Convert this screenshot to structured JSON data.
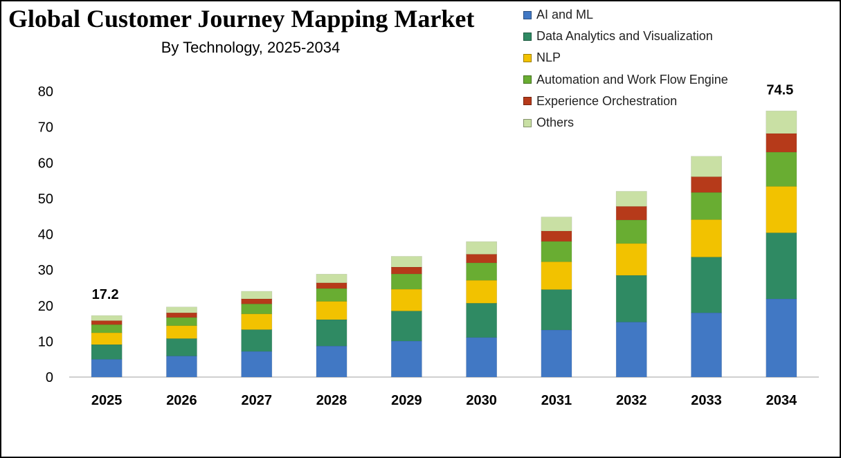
{
  "chart_data": {
    "type": "bar",
    "stacked": true,
    "title": "Global Customer Journey Mapping Market",
    "subtitle": "By Technology, 2025-2034",
    "xlabel": "",
    "ylabel": "",
    "categories": [
      "2025",
      "2026",
      "2027",
      "2028",
      "2029",
      "2030",
      "2031",
      "2032",
      "2033",
      "2034"
    ],
    "ylim": [
      0,
      80
    ],
    "yticks": [
      0,
      10,
      20,
      30,
      40,
      50,
      60,
      70,
      80
    ],
    "grid": false,
    "legend_position": "top-right",
    "series": [
      {
        "name": "AI and ML",
        "color": "#4178c4",
        "values": [
          5.0,
          5.9,
          7.2,
          8.7,
          10.1,
          11.1,
          13.2,
          15.4,
          18.0,
          21.9
        ]
      },
      {
        "name": "Data Analytics and Visualization",
        "color": "#2f8a63",
        "values": [
          4.1,
          4.9,
          6.1,
          7.4,
          8.4,
          9.6,
          11.3,
          13.1,
          15.6,
          18.5
        ]
      },
      {
        "name": "NLP",
        "color": "#f2c200",
        "values": [
          3.3,
          3.6,
          4.4,
          5.1,
          6.1,
          6.4,
          7.8,
          8.9,
          10.5,
          13.0
        ]
      },
      {
        "name": "Automation and Work Flow Engine",
        "color": "#69ad32",
        "values": [
          2.3,
          2.3,
          2.8,
          3.6,
          4.3,
          4.9,
          5.7,
          6.6,
          7.6,
          9.6
        ]
      },
      {
        "name": "Experience Orchestration",
        "color": "#b63a1a",
        "values": [
          1.1,
          1.3,
          1.4,
          1.6,
          1.9,
          2.4,
          2.9,
          3.8,
          4.4,
          5.2
        ]
      },
      {
        "name": "Others",
        "color": "#c9e0a4",
        "values": [
          1.4,
          1.6,
          2.1,
          2.4,
          3.0,
          3.5,
          3.9,
          4.2,
          5.7,
          6.3
        ]
      }
    ],
    "data_labels": [
      {
        "category": "2025",
        "text": "17.2"
      },
      {
        "category": "2034",
        "text": "74.5"
      }
    ]
  }
}
